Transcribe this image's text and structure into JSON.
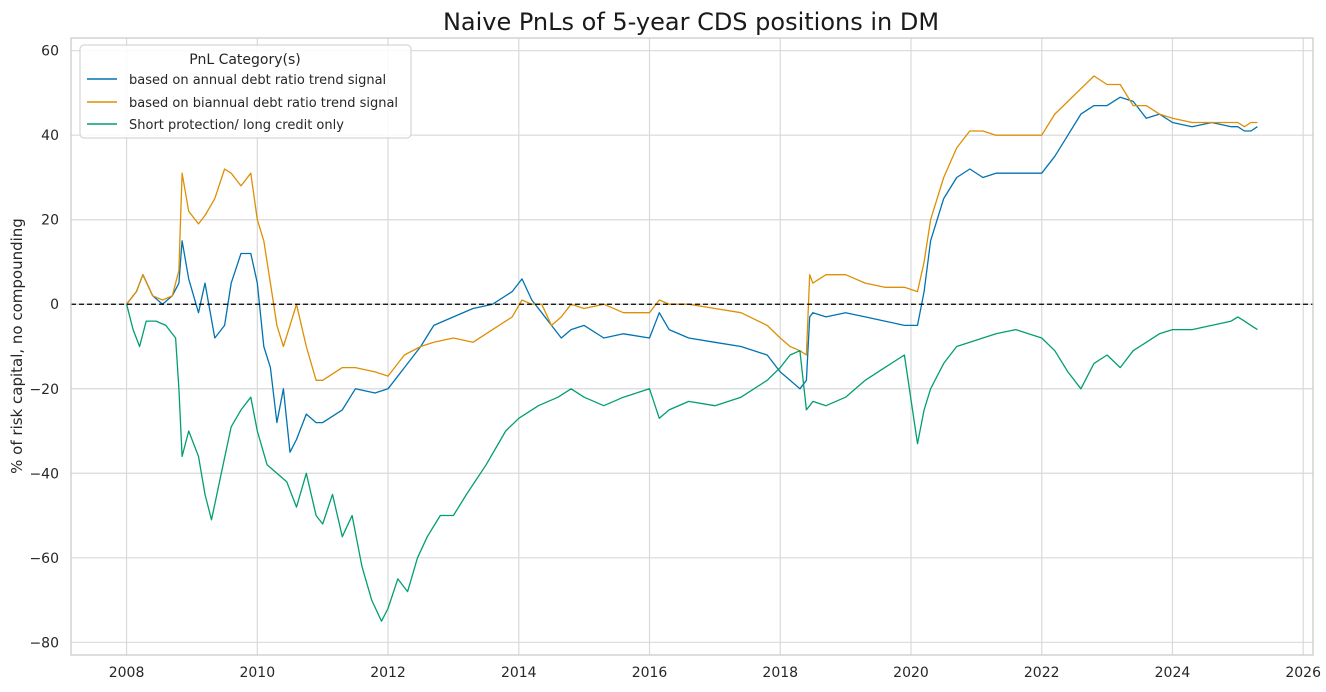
{
  "chart_data": {
    "type": "line",
    "title": "Naive PnLs of 5-year CDS positions in DM",
    "xlabel": "",
    "ylabel": "% of risk capital, no compounding",
    "xlim": [
      2007.15,
      2026.15
    ],
    "ylim": [
      -83,
      63
    ],
    "xticks": [
      2008,
      2010,
      2012,
      2014,
      2016,
      2018,
      2020,
      2022,
      2024,
      2026
    ],
    "yticks": [
      -80,
      -60,
      -40,
      -20,
      0,
      20,
      40,
      60
    ],
    "grid": true,
    "reference_line": {
      "y": 0,
      "style": "dashed",
      "color": "#000000"
    },
    "legend": {
      "title": "PnL Category(s)",
      "placement": "upper-left"
    },
    "series": [
      {
        "name": "based on annual debt ratio trend signal",
        "color": "#0173b2",
        "x": [
          2008.0,
          2008.15,
          2008.25,
          2008.4,
          2008.55,
          2008.7,
          2008.8,
          2008.85,
          2008.95,
          2009.1,
          2009.2,
          2009.35,
          2009.5,
          2009.6,
          2009.75,
          2009.9,
          2010.0,
          2010.1,
          2010.2,
          2010.3,
          2010.4,
          2010.5,
          2010.6,
          2010.75,
          2010.9,
          2011.0,
          2011.3,
          2011.5,
          2011.8,
          2012.0,
          2012.1,
          2012.25,
          2012.5,
          2012.7,
          2013.0,
          2013.3,
          2013.6,
          2013.9,
          2014.05,
          2014.2,
          2014.35,
          2014.5,
          2014.65,
          2014.8,
          2015.0,
          2015.3,
          2015.6,
          2016.0,
          2016.15,
          2016.3,
          2016.6,
          2017.0,
          2017.4,
          2017.8,
          2018.0,
          2018.15,
          2018.3,
          2018.4,
          2018.45,
          2018.5,
          2018.7,
          2019.0,
          2019.3,
          2019.6,
          2019.9,
          2020.1,
          2020.2,
          2020.3,
          2020.5,
          2020.7,
          2020.9,
          2021.1,
          2021.3,
          2021.6,
          2022.0,
          2022.2,
          2022.4,
          2022.6,
          2022.8,
          2023.0,
          2023.2,
          2023.4,
          2023.6,
          2023.8,
          2024.0,
          2024.3,
          2024.6,
          2024.9,
          2025.0,
          2025.1,
          2025.2,
          2025.3
        ],
        "values": [
          0,
          3,
          7,
          2,
          0,
          2,
          5,
          15,
          6,
          -2,
          5,
          -8,
          -5,
          5,
          12,
          12,
          5,
          -10,
          -15,
          -28,
          -20,
          -35,
          -32,
          -26,
          -28,
          -28,
          -25,
          -20,
          -21,
          -20,
          -18,
          -15,
          -10,
          -5,
          -3,
          -1,
          0,
          3,
          6,
          1,
          -2,
          -5,
          -8,
          -6,
          -5,
          -8,
          -7,
          -8,
          -2,
          -6,
          -8,
          -9,
          -10,
          -12,
          -16,
          -18,
          -20,
          -18,
          -3,
          -2,
          -3,
          -2,
          -3,
          -4,
          -5,
          -5,
          3,
          15,
          25,
          30,
          32,
          30,
          31,
          31,
          31,
          35,
          40,
          45,
          47,
          47,
          49,
          48,
          44,
          45,
          43,
          42,
          43,
          42,
          42,
          41,
          41,
          42
        ]
      },
      {
        "name": "based on biannual debt ratio trend signal",
        "color": "#de8f05",
        "x": [
          2008.0,
          2008.15,
          2008.25,
          2008.4,
          2008.55,
          2008.7,
          2008.8,
          2008.85,
          2008.95,
          2009.1,
          2009.2,
          2009.35,
          2009.5,
          2009.6,
          2009.75,
          2009.9,
          2010.0,
          2010.1,
          2010.2,
          2010.3,
          2010.4,
          2010.5,
          2010.6,
          2010.75,
          2010.9,
          2011.0,
          2011.3,
          2011.5,
          2011.8,
          2012.0,
          2012.1,
          2012.25,
          2012.5,
          2012.7,
          2013.0,
          2013.3,
          2013.6,
          2013.9,
          2014.05,
          2014.2,
          2014.35,
          2014.5,
          2014.65,
          2014.8,
          2015.0,
          2015.3,
          2015.6,
          2016.0,
          2016.15,
          2016.3,
          2016.6,
          2017.0,
          2017.4,
          2017.8,
          2018.0,
          2018.15,
          2018.3,
          2018.4,
          2018.45,
          2018.5,
          2018.7,
          2019.0,
          2019.3,
          2019.6,
          2019.9,
          2020.1,
          2020.2,
          2020.3,
          2020.5,
          2020.7,
          2020.9,
          2021.1,
          2021.3,
          2021.6,
          2022.0,
          2022.2,
          2022.4,
          2022.6,
          2022.8,
          2023.0,
          2023.2,
          2023.4,
          2023.6,
          2023.8,
          2024.0,
          2024.3,
          2024.6,
          2024.9,
          2025.0,
          2025.1,
          2025.2,
          2025.3
        ],
        "values": [
          0,
          3,
          7,
          2,
          1,
          2,
          8,
          31,
          22,
          19,
          21,
          25,
          32,
          31,
          28,
          31,
          20,
          15,
          5,
          -5,
          -10,
          -5,
          0,
          -10,
          -18,
          -18,
          -15,
          -15,
          -16,
          -17,
          -15,
          -12,
          -10,
          -9,
          -8,
          -9,
          -6,
          -3,
          1,
          0,
          0,
          -5,
          -3,
          0,
          -1,
          0,
          -2,
          -2,
          1,
          0,
          0,
          -1,
          -2,
          -5,
          -8,
          -10,
          -11,
          -12,
          7,
          5,
          7,
          7,
          5,
          4,
          4,
          3,
          10,
          20,
          30,
          37,
          41,
          41,
          40,
          40,
          40,
          45,
          48,
          51,
          54,
          52,
          52,
          47,
          47,
          45,
          44,
          43,
          43,
          43,
          43,
          42,
          43,
          43
        ]
      },
      {
        "name": "Short protection/ long credit only",
        "color": "#029e73",
        "x": [
          2008.0,
          2008.1,
          2008.2,
          2008.3,
          2008.45,
          2008.6,
          2008.75,
          2008.8,
          2008.85,
          2008.95,
          2009.1,
          2009.2,
          2009.3,
          2009.45,
          2009.6,
          2009.75,
          2009.9,
          2010.0,
          2010.15,
          2010.3,
          2010.45,
          2010.6,
          2010.75,
          2010.9,
          2011.0,
          2011.15,
          2011.3,
          2011.45,
          2011.6,
          2011.75,
          2011.9,
          2012.0,
          2012.15,
          2012.3,
          2012.45,
          2012.6,
          2012.8,
          2013.0,
          2013.2,
          2013.5,
          2013.8,
          2014.0,
          2014.3,
          2014.6,
          2014.8,
          2015.0,
          2015.3,
          2015.6,
          2016.0,
          2016.15,
          2016.3,
          2016.6,
          2017.0,
          2017.4,
          2017.8,
          2018.0,
          2018.15,
          2018.3,
          2018.4,
          2018.45,
          2018.5,
          2018.7,
          2019.0,
          2019.3,
          2019.6,
          2019.9,
          2020.1,
          2020.2,
          2020.3,
          2020.5,
          2020.7,
          2020.9,
          2021.1,
          2021.3,
          2021.6,
          2022.0,
          2022.2,
          2022.4,
          2022.6,
          2022.8,
          2023.0,
          2023.2,
          2023.4,
          2023.6,
          2023.8,
          2024.0,
          2024.3,
          2024.6,
          2024.9,
          2025.0,
          2025.1,
          2025.2,
          2025.3
        ],
        "values": [
          0,
          -6,
          -10,
          -4,
          -4,
          -5,
          -8,
          -20,
          -36,
          -30,
          -36,
          -45,
          -51,
          -40,
          -29,
          -25,
          -22,
          -30,
          -38,
          -40,
          -42,
          -48,
          -40,
          -50,
          -52,
          -45,
          -55,
          -50,
          -62,
          -70,
          -75,
          -72,
          -65,
          -68,
          -60,
          -55,
          -50,
          -50,
          -45,
          -38,
          -30,
          -27,
          -24,
          -22,
          -20,
          -22,
          -24,
          -22,
          -20,
          -27,
          -25,
          -23,
          -24,
          -22,
          -18,
          -15,
          -12,
          -11,
          -25,
          -24,
          -23,
          -24,
          -22,
          -18,
          -15,
          -12,
          -33,
          -25,
          -20,
          -14,
          -10,
          -9,
          -8,
          -7,
          -6,
          -8,
          -11,
          -16,
          -20,
          -14,
          -12,
          -15,
          -11,
          -9,
          -7,
          -6,
          -6,
          -5,
          -4,
          -3,
          -4,
          -5,
          -6
        ]
      }
    ]
  }
}
